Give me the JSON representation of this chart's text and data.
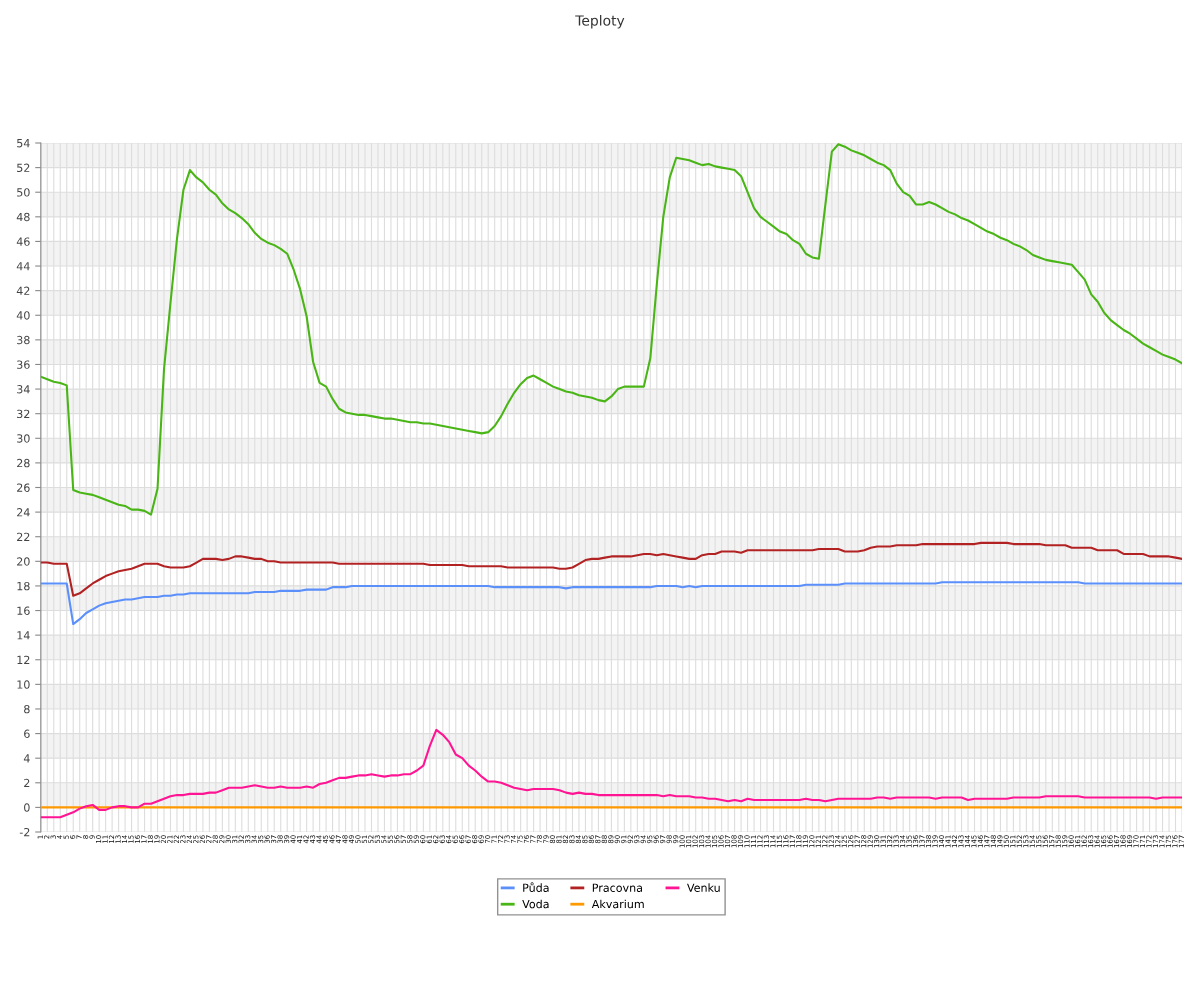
{
  "chart_data": {
    "type": "line",
    "title": "Teploty",
    "categories": [
      "1",
      "2",
      "3",
      "4",
      "5",
      "6",
      "7",
      "8",
      "9",
      "10",
      "11",
      "12",
      "13",
      "14",
      "15",
      "16",
      "17",
      "18",
      "19",
      "20",
      "21",
      "22",
      "23",
      "24",
      "25",
      "26",
      "27",
      "28",
      "29",
      "30",
      "31",
      "32",
      "33",
      "34",
      "35",
      "36",
      "37",
      "38",
      "39",
      "40",
      "41",
      "42",
      "43",
      "44",
      "45",
      "46",
      "47",
      "48",
      "49",
      "50",
      "51",
      "52",
      "53",
      "54",
      "55",
      "56",
      "57",
      "58",
      "59",
      "60",
      "61",
      "62",
      "63",
      "64",
      "65",
      "66",
      "67",
      "68",
      "69",
      "70",
      "71",
      "72",
      "73",
      "74",
      "75",
      "76",
      "77",
      "78",
      "79",
      "80",
      "81",
      "82",
      "83",
      "84",
      "85",
      "86",
      "87",
      "88",
      "89",
      "90",
      "91",
      "92",
      "93",
      "94",
      "95",
      "96",
      "97",
      "98",
      "99",
      "100",
      "101",
      "102",
      "103",
      "104",
      "105",
      "106",
      "107",
      "108",
      "109",
      "110",
      "111",
      "112",
      "113",
      "114",
      "115",
      "116",
      "117",
      "118",
      "119",
      "120",
      "121",
      "122",
      "123",
      "124",
      "125",
      "126",
      "127",
      "128",
      "129",
      "130",
      "131",
      "132",
      "133",
      "134",
      "135",
      "136",
      "137",
      "138",
      "139",
      "140",
      "141",
      "142",
      "143",
      "144",
      "145",
      "146",
      "147",
      "148",
      "149",
      "150",
      "151",
      "152",
      "153",
      "154",
      "155",
      "156",
      "157",
      "158",
      "159",
      "160",
      "161",
      "162",
      "163",
      "164",
      "165",
      "166",
      "167",
      "168",
      "169",
      "170",
      "171",
      "172",
      "173",
      "174",
      "175",
      "176",
      "177"
    ],
    "ylim": [
      -2,
      54
    ],
    "yticks": [
      -2,
      0,
      2,
      4,
      6,
      8,
      10,
      12,
      14,
      16,
      18,
      20,
      22,
      24,
      26,
      28,
      30,
      32,
      34,
      36,
      38,
      40,
      42,
      44,
      46,
      48,
      50,
      52,
      54
    ],
    "grid": true,
    "legend": "bottom",
    "marker": "none",
    "line_style": "solid",
    "series": [
      {
        "name": "Půda",
        "color": "#5b8ff9",
        "values": [
          18.2,
          18.2,
          18.2,
          18.2,
          18.2,
          14.9,
          15.3,
          15.8,
          16.1,
          16.4,
          16.6,
          16.7,
          16.8,
          16.9,
          16.9,
          17.0,
          17.1,
          17.1,
          17.1,
          17.2,
          17.2,
          17.3,
          17.3,
          17.4,
          17.4,
          17.4,
          17.4,
          17.4,
          17.4,
          17.4,
          17.4,
          17.4,
          17.4,
          17.5,
          17.5,
          17.5,
          17.5,
          17.6,
          17.6,
          17.6,
          17.6,
          17.7,
          17.7,
          17.7,
          17.7,
          17.9,
          17.9,
          17.9,
          18.0,
          18.0,
          18.0,
          18.0,
          18.0,
          18.0,
          18.0,
          18.0,
          18.0,
          18.0,
          18.0,
          18.0,
          18.0,
          18.0,
          18.0,
          18.0,
          18.0,
          18.0,
          18.0,
          18.0,
          18.0,
          18.0,
          17.9,
          17.9,
          17.9,
          17.9,
          17.9,
          17.9,
          17.9,
          17.9,
          17.9,
          17.9,
          17.9,
          17.8,
          17.9,
          17.9,
          17.9,
          17.9,
          17.9,
          17.9,
          17.9,
          17.9,
          17.9,
          17.9,
          17.9,
          17.9,
          17.9,
          18.0,
          18.0,
          18.0,
          18.0,
          17.9,
          18.0,
          17.9,
          18.0,
          18.0,
          18.0,
          18.0,
          18.0,
          18.0,
          18.0,
          18.0,
          18.0,
          18.0,
          18.0,
          18.0,
          18.0,
          18.0,
          18.0,
          18.0,
          18.1,
          18.1,
          18.1,
          18.1,
          18.1,
          18.1,
          18.2,
          18.2,
          18.2,
          18.2,
          18.2,
          18.2,
          18.2,
          18.2,
          18.2,
          18.2,
          18.2,
          18.2,
          18.2,
          18.2,
          18.2,
          18.3,
          18.3,
          18.3,
          18.3,
          18.3,
          18.3,
          18.3,
          18.3,
          18.3,
          18.3,
          18.3,
          18.3,
          18.3,
          18.3,
          18.3,
          18.3,
          18.3,
          18.3,
          18.3,
          18.3,
          18.3,
          18.3,
          18.2,
          18.2,
          18.2,
          18.2,
          18.2,
          18.2,
          18.2,
          18.2,
          18.2,
          18.2,
          18.2,
          18.2,
          18.2,
          18.2,
          18.2,
          18.2
        ]
      },
      {
        "name": "Voda",
        "color": "#4ab516",
        "values": [
          35.0,
          34.8,
          34.6,
          34.5,
          34.3,
          25.8,
          25.6,
          25.5,
          25.4,
          25.2,
          25.0,
          24.8,
          24.6,
          24.5,
          24.2,
          24.2,
          24.1,
          23.8,
          25.9,
          35.6,
          41.0,
          46.2,
          50.2,
          51.8,
          51.2,
          50.8,
          50.2,
          49.8,
          49.1,
          48.6,
          48.3,
          47.9,
          47.4,
          46.7,
          46.2,
          45.9,
          45.7,
          45.4,
          45.0,
          43.7,
          42.1,
          39.9,
          36.2,
          34.5,
          34.2,
          33.2,
          32.4,
          32.1,
          32.0,
          31.9,
          31.9,
          31.8,
          31.7,
          31.6,
          31.6,
          31.5,
          31.4,
          31.3,
          31.3,
          31.2,
          31.2,
          31.1,
          31.0,
          30.9,
          30.8,
          30.7,
          30.6,
          30.5,
          30.4,
          30.5,
          31.0,
          31.8,
          32.8,
          33.7,
          34.4,
          34.9,
          35.1,
          34.8,
          34.5,
          34.2,
          34.0,
          33.8,
          33.7,
          33.5,
          33.4,
          33.3,
          33.1,
          33.0,
          33.4,
          34.0,
          34.2,
          34.2,
          34.2,
          34.2,
          36.5,
          42.5,
          48.0,
          51.2,
          52.8,
          52.7,
          52.6,
          52.4,
          52.2,
          52.3,
          52.1,
          52.0,
          51.9,
          51.8,
          51.3,
          50.0,
          48.7,
          48.0,
          47.6,
          47.2,
          46.8,
          46.6,
          46.1,
          45.8,
          45.0,
          44.7,
          44.6,
          49.0,
          53.3,
          53.9,
          53.7,
          53.4,
          53.2,
          53.0,
          52.7,
          52.4,
          52.2,
          51.8,
          50.7,
          50.0,
          49.7,
          49.0,
          49.0,
          49.2,
          49.0,
          48.7,
          48.4,
          48.2,
          47.9,
          47.7,
          47.4,
          47.1,
          46.8,
          46.6,
          46.3,
          46.1,
          45.8,
          45.6,
          45.3,
          44.9,
          44.7,
          44.5,
          44.4,
          44.3,
          44.2,
          44.1,
          43.5,
          42.9,
          41.7,
          41.1,
          40.2,
          39.6,
          39.2,
          38.8,
          38.5,
          38.1,
          37.7,
          37.4,
          37.1,
          36.8,
          36.6,
          36.4,
          36.1
        ]
      },
      {
        "name": "Pracovna",
        "color": "#b22222",
        "values": [
          19.9,
          19.9,
          19.8,
          19.8,
          19.8,
          17.2,
          17.4,
          17.8,
          18.2,
          18.5,
          18.8,
          19.0,
          19.2,
          19.3,
          19.4,
          19.6,
          19.8,
          19.8,
          19.8,
          19.6,
          19.5,
          19.5,
          19.5,
          19.6,
          19.9,
          20.2,
          20.2,
          20.2,
          20.1,
          20.2,
          20.4,
          20.4,
          20.3,
          20.2,
          20.2,
          20.0,
          20.0,
          19.9,
          19.9,
          19.9,
          19.9,
          19.9,
          19.9,
          19.9,
          19.9,
          19.9,
          19.8,
          19.8,
          19.8,
          19.8,
          19.8,
          19.8,
          19.8,
          19.8,
          19.8,
          19.8,
          19.8,
          19.8,
          19.8,
          19.8,
          19.7,
          19.7,
          19.7,
          19.7,
          19.7,
          19.7,
          19.6,
          19.6,
          19.6,
          19.6,
          19.6,
          19.6,
          19.5,
          19.5,
          19.5,
          19.5,
          19.5,
          19.5,
          19.5,
          19.5,
          19.4,
          19.4,
          19.5,
          19.8,
          20.1,
          20.2,
          20.2,
          20.3,
          20.4,
          20.4,
          20.4,
          20.4,
          20.5,
          20.6,
          20.6,
          20.5,
          20.6,
          20.5,
          20.4,
          20.3,
          20.2,
          20.2,
          20.5,
          20.6,
          20.6,
          20.8,
          20.8,
          20.8,
          20.7,
          20.9,
          20.9,
          20.9,
          20.9,
          20.9,
          20.9,
          20.9,
          20.9,
          20.9,
          20.9,
          20.9,
          21.0,
          21.0,
          21.0,
          21.0,
          20.8,
          20.8,
          20.8,
          20.9,
          21.1,
          21.2,
          21.2,
          21.2,
          21.3,
          21.3,
          21.3,
          21.3,
          21.4,
          21.4,
          21.4,
          21.4,
          21.4,
          21.4,
          21.4,
          21.4,
          21.4,
          21.5,
          21.5,
          21.5,
          21.5,
          21.5,
          21.4,
          21.4,
          21.4,
          21.4,
          21.4,
          21.3,
          21.3,
          21.3,
          21.3,
          21.1,
          21.1,
          21.1,
          21.1,
          20.9,
          20.9,
          20.9,
          20.9,
          20.6,
          20.6,
          20.6,
          20.6,
          20.4,
          20.4,
          20.4,
          20.4,
          20.3,
          20.2
        ]
      },
      {
        "name": "Akvarium",
        "color": "#ff9900",
        "values": [
          0,
          0,
          0,
          0,
          0,
          0,
          0,
          0,
          0,
          0,
          0,
          0,
          0,
          0,
          0,
          0,
          0,
          0,
          0,
          0,
          0,
          0,
          0,
          0,
          0,
          0,
          0,
          0,
          0,
          0,
          0,
          0,
          0,
          0,
          0,
          0,
          0,
          0,
          0,
          0,
          0,
          0,
          0,
          0,
          0,
          0,
          0,
          0,
          0,
          0,
          0,
          0,
          0,
          0,
          0,
          0,
          0,
          0,
          0,
          0,
          0,
          0,
          0,
          0,
          0,
          0,
          0,
          0,
          0,
          0,
          0,
          0,
          0,
          0,
          0,
          0,
          0,
          0,
          0,
          0,
          0,
          0,
          0,
          0,
          0,
          0,
          0,
          0,
          0,
          0,
          0,
          0,
          0,
          0,
          0,
          0,
          0,
          0,
          0,
          0,
          0,
          0,
          0,
          0,
          0,
          0,
          0,
          0,
          0,
          0,
          0,
          0,
          0,
          0,
          0,
          0,
          0,
          0,
          0,
          0,
          0,
          0,
          0,
          0,
          0,
          0,
          0,
          0,
          0,
          0,
          0,
          0,
          0,
          0,
          0,
          0,
          0,
          0,
          0,
          0,
          0,
          0,
          0,
          0,
          0,
          0,
          0,
          0,
          0,
          0,
          0,
          0,
          0,
          0,
          0,
          0,
          0,
          0,
          0,
          0,
          0,
          0,
          0,
          0,
          0,
          0,
          0,
          0,
          0,
          0,
          0,
          0,
          0,
          0,
          0,
          0,
          0
        ]
      },
      {
        "name": "Venku",
        "color": "#ff1493",
        "values": [
          -0.8,
          -0.8,
          -0.8,
          -0.8,
          -0.6,
          -0.4,
          -0.1,
          0.1,
          0.2,
          -0.2,
          -0.2,
          0.0,
          0.1,
          0.1,
          0.0,
          0.0,
          0.3,
          0.3,
          0.5,
          0.7,
          0.9,
          1.0,
          1.0,
          1.1,
          1.1,
          1.1,
          1.2,
          1.2,
          1.4,
          1.6,
          1.6,
          1.6,
          1.7,
          1.8,
          1.7,
          1.6,
          1.6,
          1.7,
          1.6,
          1.6,
          1.6,
          1.7,
          1.6,
          1.9,
          2.0,
          2.2,
          2.4,
          2.4,
          2.5,
          2.6,
          2.6,
          2.7,
          2.6,
          2.5,
          2.6,
          2.6,
          2.7,
          2.7,
          3.0,
          3.4,
          5.0,
          6.3,
          5.9,
          5.3,
          4.3,
          4.0,
          3.4,
          3.0,
          2.5,
          2.1,
          2.1,
          2.0,
          1.8,
          1.6,
          1.5,
          1.4,
          1.5,
          1.5,
          1.5,
          1.5,
          1.4,
          1.2,
          1.1,
          1.2,
          1.1,
          1.1,
          1.0,
          1.0,
          1.0,
          1.0,
          1.0,
          1.0,
          1.0,
          1.0,
          1.0,
          1.0,
          0.9,
          1.0,
          0.9,
          0.9,
          0.9,
          0.8,
          0.8,
          0.7,
          0.7,
          0.6,
          0.5,
          0.6,
          0.5,
          0.7,
          0.6,
          0.6,
          0.6,
          0.6,
          0.6,
          0.6,
          0.6,
          0.6,
          0.7,
          0.6,
          0.6,
          0.5,
          0.6,
          0.7,
          0.7,
          0.7,
          0.7,
          0.7,
          0.7,
          0.8,
          0.8,
          0.7,
          0.8,
          0.8,
          0.8,
          0.8,
          0.8,
          0.8,
          0.7,
          0.8,
          0.8,
          0.8,
          0.8,
          0.6,
          0.7,
          0.7,
          0.7,
          0.7,
          0.7,
          0.7,
          0.8,
          0.8,
          0.8,
          0.8,
          0.8,
          0.9,
          0.9,
          0.9,
          0.9,
          0.9,
          0.9,
          0.8,
          0.8,
          0.8,
          0.8,
          0.8,
          0.8,
          0.8,
          0.8,
          0.8,
          0.8,
          0.8,
          0.7,
          0.8,
          0.8,
          0.8,
          0.8
        ]
      }
    ]
  }
}
